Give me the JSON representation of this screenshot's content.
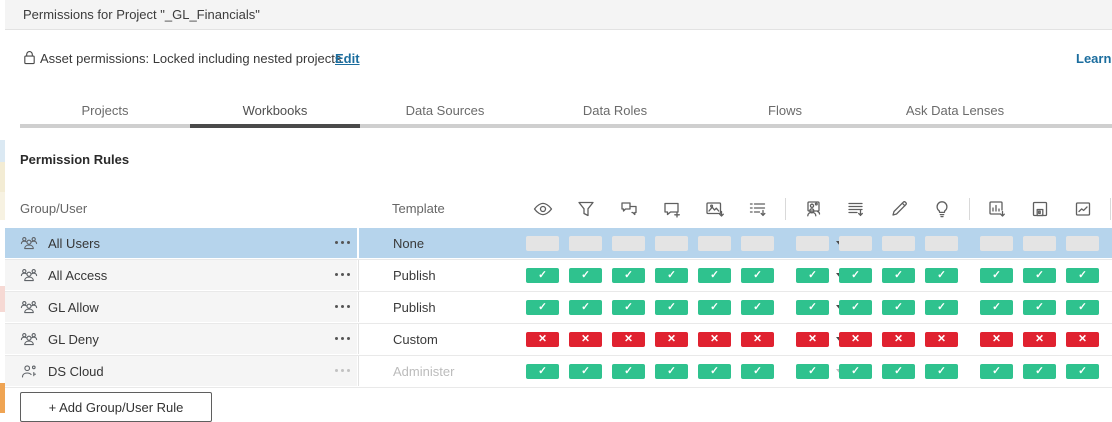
{
  "window": {
    "title": "Permissions for Project \"_GL_Financials\""
  },
  "asset_bar": {
    "text": "Asset permissions: Locked including nested projects",
    "edit_label": "Edit",
    "learn_more_label": "Learn more"
  },
  "tabs": [
    {
      "label": "Projects",
      "active": false
    },
    {
      "label": "Workbooks",
      "active": true
    },
    {
      "label": "Data Sources",
      "active": false
    },
    {
      "label": "Data Roles",
      "active": false
    },
    {
      "label": "Flows",
      "active": false
    },
    {
      "label": "Ask Data Lenses",
      "active": false
    }
  ],
  "section_title": "Permission Rules",
  "table": {
    "group_user_header": "Group/User",
    "template_header": "Template",
    "capability_groups": [
      [
        {
          "name": "view",
          "icon": "eye-icon"
        },
        {
          "name": "filter",
          "icon": "filter-icon"
        },
        {
          "name": "view-comments",
          "icon": "view-comments-icon"
        },
        {
          "name": "add-comments",
          "icon": "add-comments-icon"
        },
        {
          "name": "download-image-pdf",
          "icon": "download-image-icon"
        },
        {
          "name": "download-summary-data",
          "icon": "download-summary-data-icon"
        }
      ],
      [
        {
          "name": "share-customized",
          "icon": "share-customized-icon"
        },
        {
          "name": "download-full-data",
          "icon": "download-full-data-icon"
        },
        {
          "name": "web-edit",
          "icon": "pencil-icon"
        },
        {
          "name": "run-explain-data",
          "icon": "lightbulb-icon"
        }
      ],
      [
        {
          "name": "download-workbook",
          "icon": "download-workbook-icon"
        },
        {
          "name": "overwrite",
          "icon": "save-icon"
        },
        {
          "name": "create-refresh-metrics",
          "icon": "metrics-icon"
        }
      ]
    ],
    "rows": [
      {
        "name": "All Users",
        "member_type": "group",
        "template": "None",
        "selected": true,
        "disabled": false,
        "cells": [
          "none",
          "none",
          "none",
          "none",
          "none",
          "none",
          "none",
          "none",
          "none",
          "none",
          "none",
          "none",
          "none"
        ]
      },
      {
        "name": "All Access",
        "member_type": "group",
        "template": "Publish",
        "selected": false,
        "disabled": false,
        "cells": [
          "allow",
          "allow",
          "allow",
          "allow",
          "allow",
          "allow",
          "allow",
          "allow",
          "allow",
          "allow",
          "allow",
          "allow",
          "allow"
        ]
      },
      {
        "name": "GL Allow",
        "member_type": "group",
        "template": "Publish",
        "selected": false,
        "disabled": false,
        "cells": [
          "allow",
          "allow",
          "allow",
          "allow",
          "allow",
          "allow",
          "allow",
          "allow",
          "allow",
          "allow",
          "allow",
          "allow",
          "allow"
        ]
      },
      {
        "name": "GL Deny",
        "member_type": "group",
        "template": "Custom",
        "selected": false,
        "disabled": false,
        "cells": [
          "deny",
          "deny",
          "deny",
          "deny",
          "deny",
          "deny",
          "deny",
          "deny",
          "deny",
          "deny",
          "deny",
          "deny",
          "deny"
        ]
      },
      {
        "name": "DS Cloud",
        "member_type": "user",
        "template": "Administer",
        "selected": false,
        "disabled": true,
        "cells": [
          "allow",
          "allow",
          "allow",
          "allow",
          "allow",
          "allow",
          "allow",
          "allow",
          "allow",
          "allow",
          "allow",
          "allow",
          "allow"
        ]
      }
    ]
  },
  "add_rule_button_label": "+ Add Group/User Rule",
  "cell_glyphs": {
    "allow": "✓",
    "deny": "✕",
    "none": ""
  },
  "colors": {
    "allow": "#2fc28e",
    "deny": "#e02230",
    "selected_row": "#b6d4ec",
    "neutral_cell": "#e4e4e4",
    "link": "#1b6d9e",
    "active_tab_underline": "#4a4a4a"
  }
}
